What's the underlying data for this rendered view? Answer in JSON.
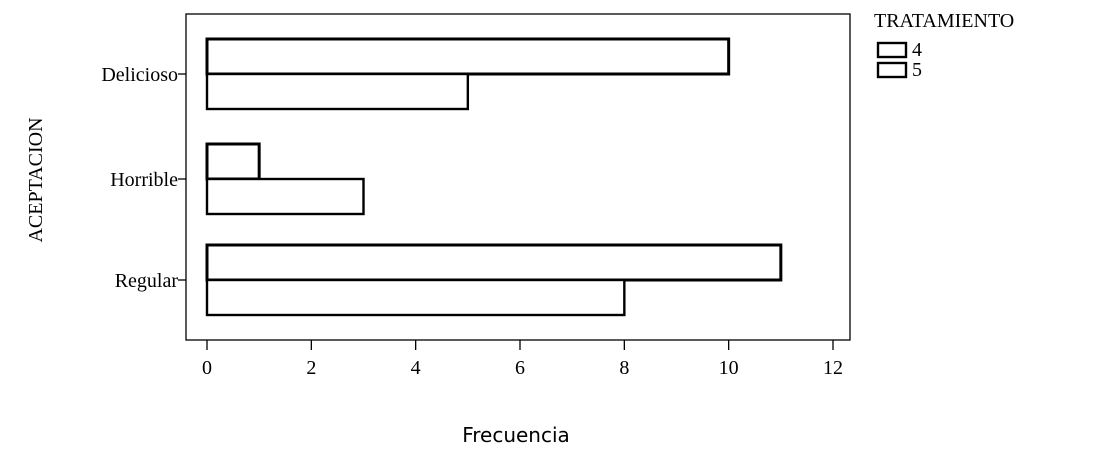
{
  "chart_data": {
    "type": "bar",
    "orientation": "horizontal",
    "categories": [
      "Delicioso",
      "Horrible",
      "Regular"
    ],
    "series": [
      {
        "name": "4",
        "values": [
          10,
          1,
          11
        ]
      },
      {
        "name": "5",
        "values": [
          5,
          3,
          8
        ]
      }
    ],
    "xlabel": "Frecuencia",
    "ylabel": "ACEPTACION",
    "xlim": [
      0,
      12
    ],
    "xticks": [
      0,
      2,
      4,
      6,
      8,
      10,
      12
    ],
    "legend": {
      "title": "TRATAMIENTO",
      "placement": "top-right"
    },
    "grid": false,
    "colors": {
      "bar_fill": "#ffffff",
      "bar_stroke": "#000000"
    }
  }
}
